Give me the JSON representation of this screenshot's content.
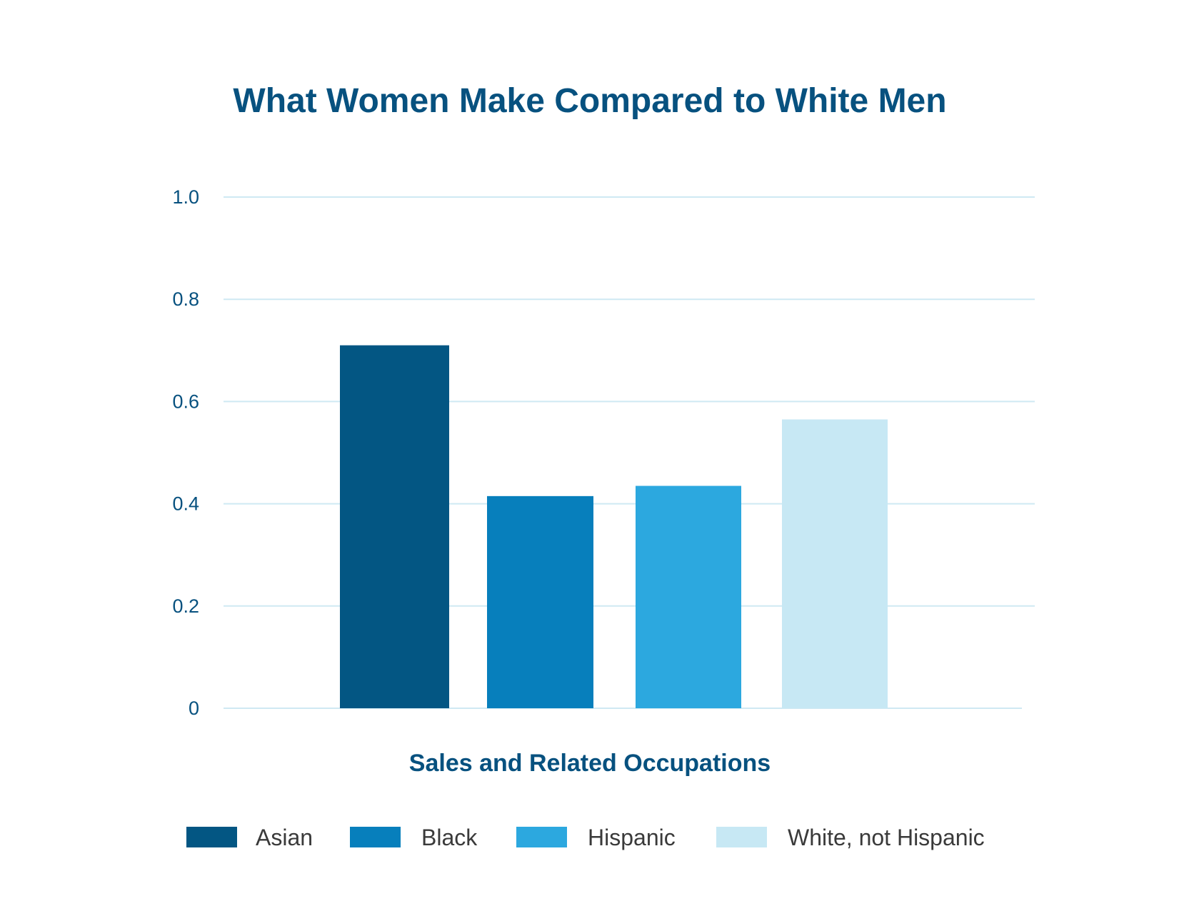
{
  "chart_data": {
    "type": "bar",
    "title": "What Women Make Compared to White Men",
    "xlabel": "Sales and Related Occupations",
    "ylabel": "",
    "ylim": [
      0,
      1.0
    ],
    "yticks": [
      "0",
      "0.2",
      "0.4",
      "0.6",
      "0.8",
      "1.0"
    ],
    "grid": true,
    "legend_position": "bottom",
    "series": [
      {
        "name": "Asian",
        "value": 0.71,
        "color": "#035683"
      },
      {
        "name": "Black",
        "value": 0.415,
        "color": "#077fbc"
      },
      {
        "name": "Hispanic",
        "value": 0.435,
        "color": "#2ca8df"
      },
      {
        "name": "White, not Hispanic",
        "value": 0.565,
        "color": "#c7e8f4"
      }
    ]
  }
}
